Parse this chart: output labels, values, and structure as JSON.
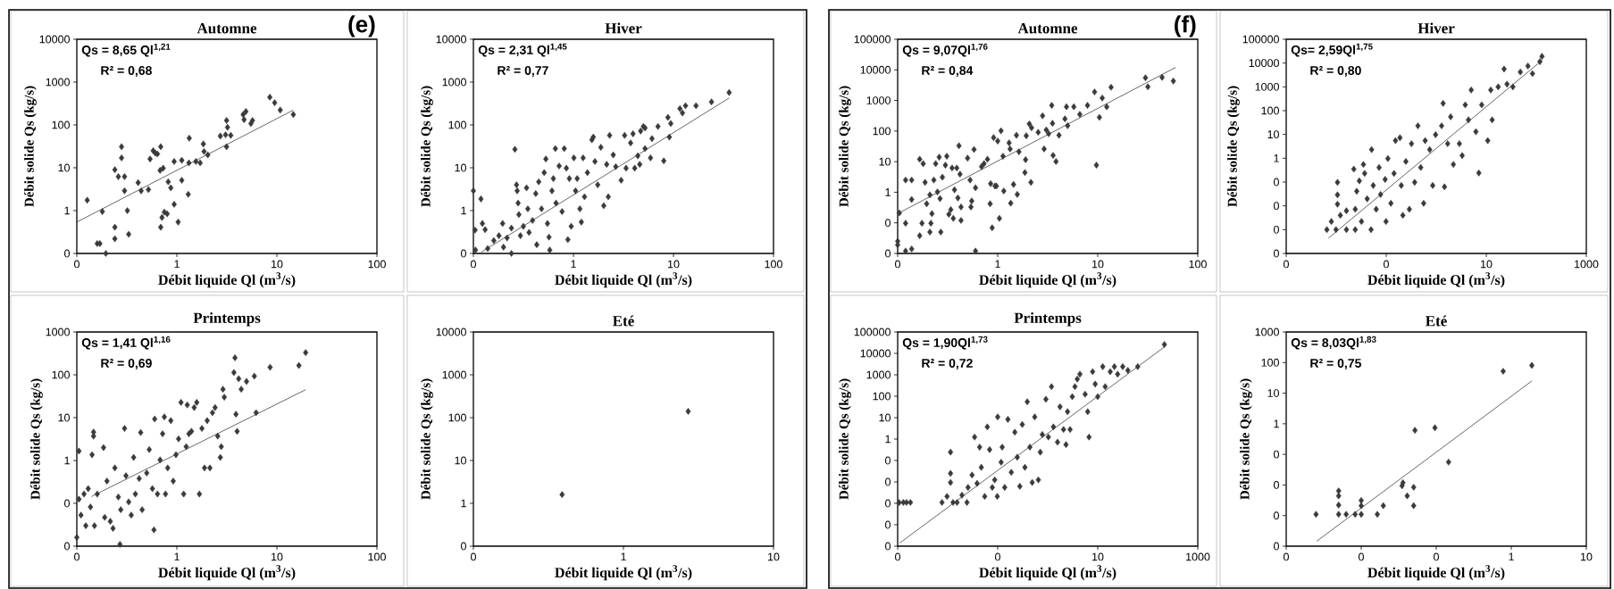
{
  "chart_data": [
    {
      "type": "scatter",
      "title": "Automne",
      "xlabel": "Débit liquide Ql (m$^{3}$/s)",
      "ylabel": "Débit solide Qs (kg/s)",
      "annotations": [
        "Qs = 8,65 Ql$^{1,21}$",
        "R² = 0,68",
        "(e)"
      ],
      "log": "xy",
      "xlim": [
        0.1,
        100
      ],
      "ylim": [
        0.1,
        10000
      ],
      "xticks": [
        {
          "value": 0.1,
          "label": "0"
        },
        1,
        10,
        100
      ],
      "yticks": [
        {
          "value": 0.1,
          "label": "0"
        },
        1,
        10,
        100,
        1000,
        10000
      ],
      "series": [
        {
          "color": "#3a3a3a",
          "marker": "diamond",
          "x": [
            0.127,
            0.16,
            0.17,
            0.18,
            0.195,
            0.24,
            0.24,
            0.24,
            0.26,
            0.28,
            0.28,
            0.3,
            0.3,
            0.32,
            0.33,
            0.41,
            0.44,
            0.52,
            0.54,
            0.58,
            0.61,
            0.64,
            0.68,
            0.69,
            0.69,
            0.71,
            0.73,
            0.75,
            0.8,
            0.82,
            0.87,
            0.94,
            0.94,
            1.03,
            1.12,
            1.12,
            1.3,
            1.32,
            1.33,
            1.55,
            1.71,
            1.84,
            1.87,
            2.04,
            2.72,
            3.07,
            3.14,
            3.21,
            3.14,
            3.46,
            4.6,
            4.7,
            4.9,
            5.5,
            5.7,
            8.5,
            9.5,
            10.8,
            14.6
          ],
          "values": [
            1.75,
            0.17,
            0.17,
            0.95,
            0.1,
            9,
            0.41,
            0.22,
            6.2,
            31,
            17,
            2.9,
            6.2,
            1.0,
            0.28,
            4.5,
            2.9,
            3.1,
            16,
            25,
            22,
            21,
            8.7,
            31,
            0.41,
            0.69,
            9.8,
            0.92,
            0.84,
            4.7,
            3.4,
            14,
            1.4,
            0.54,
            15,
            5.1,
            2.4,
            13,
            49,
            14,
            13,
            36,
            24,
            20,
            55,
            59,
            127,
            88,
            31,
            57,
            175,
            133,
            206,
            108,
            127,
            444,
            330,
            222,
            175
          ]
        },
        {
          "type": "line",
          "color": "#000000",
          "x": [
            0.1,
            14.6
          ],
          "values": [
            0.54,
            222
          ]
        }
      ]
    },
    {
      "type": "scatter",
      "title": "Hiver",
      "xlabel": "Débit liquide Ql (m$^{3}$/s)",
      "ylabel": "Débit solide Qs (kg/s)",
      "annotations": [
        "Qs = 2,31 Ql$^{1,45}$",
        "R² = 0,77"
      ],
      "log": "xy",
      "xlim": [
        0.1,
        100
      ],
      "ylim": [
        0.1,
        10000
      ],
      "xticks": [
        {
          "value": 0.1,
          "label": "0"
        },
        1,
        10,
        100
      ],
      "yticks": [
        {
          "value": 0.1,
          "label": "0"
        },
        1,
        10,
        100,
        1000,
        10000
      ],
      "series": [
        {
          "color": "#3a3a3a",
          "marker": "diamond",
          "x": [
            0.1,
            0.119,
            0.104,
            0.123,
            0.131,
            0.105,
            0.139,
            0.16,
            0.18,
            0.196,
            0.2,
            0.217,
            0.24,
            0.24,
            0.26,
            0.27,
            0.274,
            0.28,
            0.285,
            0.295,
            0.316,
            0.34,
            0.35,
            0.36,
            0.39,
            0.42,
            0.43,
            0.45,
            0.48,
            0.51,
            0.53,
            0.55,
            0.57,
            0.58,
            0.61,
            0.63,
            0.66,
            0.67,
            0.72,
            0.77,
            0.81,
            0.85,
            0.88,
            0.91,
            0.95,
            1.01,
            1.05,
            1.09,
            1.16,
            1.2,
            1.25,
            1.29,
            1.38,
            1.53,
            1.58,
            1.64,
            1.75,
            1.88,
            2.01,
            2.15,
            2.23,
            2.3,
            2.5,
            2.65,
            3.0,
            3.25,
            3.36,
            3.73,
            3.94,
            4.1,
            4.4,
            4.6,
            4.7,
            5.0,
            5.2,
            5.2,
            5.9,
            6.1,
            7.0,
            8.0,
            8.8,
            9.1,
            9.4,
            11.6,
            12.3,
            13.2,
            16.8,
            24,
            36
          ],
          "values": [
            2.9,
            1.87,
            0.35,
            0.5,
            0.36,
            0.12,
            0.13,
            0.2,
            0.26,
            0.5,
            0.14,
            0.23,
            0.1,
            0.39,
            27,
            4.0,
            2.9,
            1.5,
            0.81,
            0.26,
            0.43,
            3.4,
            1.1,
            0.31,
            0.59,
            2.5,
            0.16,
            4.7,
            1.1,
            7.7,
            16,
            0.5,
            0.24,
            0.12,
            2.9,
            5.6,
            28,
            1.5,
            11,
            0.95,
            28,
            9.8,
            0.21,
            5.6,
            0.43,
            17,
            2.9,
            5.6,
            1.1,
            0.54,
            17,
            2.1,
            7.7,
            45,
            52,
            14,
            4.0,
            30,
            1.3,
            12,
            2.1,
            57,
            20,
            10.6,
            5.1,
            57,
            9.8,
            38,
            62,
            9.8,
            19,
            12,
            72,
            92,
            28,
            85,
            17,
            48,
            92,
            14.5,
            150,
            52,
            108,
            240,
            190,
            280,
            280,
            345,
            570
          ]
        },
        {
          "type": "line",
          "color": "#000000",
          "x": [
            0.12,
            36
          ],
          "values": [
            0.107,
            424
          ]
        }
      ]
    },
    {
      "type": "scatter",
      "title": "Automne",
      "xlabel": "Débit liquide Ql (m$^{3}$/s)",
      "ylabel": "Débit solide Qs (kg/s)",
      "annotations": [
        "Qs = 9,07Ql$^{1,76}$",
        "R² = 0,84",
        "(f)"
      ],
      "log": "xy",
      "xlim": [
        0.1,
        100
      ],
      "ylim": [
        0.01,
        100000
      ],
      "xticks": [
        {
          "value": 0.1,
          "label": "0"
        },
        1,
        10,
        100
      ],
      "yticks": [
        {
          "value": 0.01,
          "label": "0"
        },
        {
          "value": 0.1,
          "label": "0"
        },
        1,
        10,
        100,
        1000,
        10000,
        100000
      ],
      "series": [
        {
          "color": "#3a3a3a",
          "marker": "diamond",
          "x": [
            0.1,
            0.1,
            0.104,
            0.12,
            0.12,
            0.12,
            0.138,
            0.138,
            0.138,
            0.166,
            0.166,
            0.175,
            0.18,
            0.188,
            0.195,
            0.21,
            0.21,
            0.215,
            0.22,
            0.23,
            0.24,
            0.25,
            0.26,
            0.265,
            0.27,
            0.28,
            0.3,
            0.31,
            0.325,
            0.34,
            0.35,
            0.36,
            0.37,
            0.39,
            0.4,
            0.41,
            0.42,
            0.43,
            0.43,
            0.5,
            0.53,
            0.54,
            0.55,
            0.58,
            0.6,
            0.6,
            0.69,
            0.73,
            0.79,
            0.84,
            0.85,
            0.88,
            0.91,
            0.94,
            0.97,
            1.0,
            1.04,
            1.08,
            1.13,
            1.15,
            1.3,
            1.33,
            1.35,
            1.44,
            1.54,
            1.57,
            1.63,
            1.87,
            1.9,
            1.93,
            2.07,
            2.15,
            2.18,
            2.54,
            2.81,
            2.91,
            3.06,
            3.23,
            3.47,
            3.53,
            3.58,
            3.83,
            4.1,
            4.7,
            4.87,
            5.0,
            5.77,
            6.62,
            7.9,
            9.3,
            9.7,
            10.4,
            11.1,
            12.3,
            13.6,
            30,
            31.7,
            44,
            57
          ],
          "values": [
            0.025,
            0.019,
            0.21,
            2.5,
            0.097,
            0.012,
            2.5,
            0.58,
            0.014,
            12,
            0.038,
            0.097,
            8.6,
            2.1,
            0.42,
            0.82,
            0.05,
            0.097,
            0.2,
            2.5,
            8.6,
            1.02,
            14,
            0.62,
            0.05,
            3.1,
            7.7,
            15,
            0.19,
            0.27,
            6.2,
            0.14,
            1.2,
            6.2,
            0.65,
            33,
            3.9,
            0.12,
            0.33,
            13,
            2.5,
            0.33,
            0.52,
            25,
            1.4,
            0.012,
            6.9,
            8.6,
            12,
            0.42,
            1.9,
            0.069,
            61,
            1.6,
            1.6,
            47,
            0.14,
            102,
            15,
            1.1,
            41,
            26,
            0.44,
            1.8,
            73,
            0.85,
            21,
            4.4,
            11.6,
            70,
            171,
            2.1,
            128,
            91,
            315,
            26,
            109,
            82,
            690,
            179,
            16,
            10.1,
            73,
            250,
            620,
            150,
            620,
            350,
            690,
            1900,
            7.7,
            280,
            1200,
            620,
            2700,
            5500,
            2800,
            5700,
            4300
          ]
        },
        {
          "type": "line",
          "color": "#000000",
          "x": [
            0.1,
            60
          ],
          "values": [
            0.2,
            12000
          ]
        }
      ]
    },
    {
      "type": "scatter",
      "title": "Hiver",
      "xlabel": "Débit liquide Ql (m$^{3}$/s)",
      "ylabel": "Débit solide Qs (kg/s)",
      "annotations": [
        "Qs= 2,59Ql$^{1,75}$",
        "R² = 0,80"
      ],
      "log": "xy",
      "xlim": [
        0.001,
        1000
      ],
      "ylim": [
        0.0001,
        100000
      ],
      "xticks": [
        {
          "value": 0.001,
          "label": "0"
        },
        {
          "value": 0.1,
          "label": "0"
        },
        10,
        1000
      ],
      "yticks": [
        {
          "value": 0.0001,
          "label": "0"
        },
        {
          "value": 0.001,
          "label": "0"
        },
        {
          "value": 0.01,
          "label": "0"
        },
        {
          "value": 0.1,
          "label": "0"
        },
        1,
        10,
        100,
        1000,
        10000,
        100000
      ],
      "series": [
        {
          "color": "#3a3a3a",
          "marker": "diamond",
          "x": [
            0.0065,
            0.008,
            0.0099,
            0.0106,
            0.0106,
            0.0106,
            0.0121,
            0.016,
            0.016,
            0.0225,
            0.024,
            0.024,
            0.0257,
            0.029,
            0.032,
            0.035,
            0.037,
            0.0416,
            0.0497,
            0.051,
            0.055,
            0.063,
            0.072,
            0.077,
            0.095,
            0.099,
            0.108,
            0.124,
            0.143,
            0.153,
            0.188,
            0.2,
            0.215,
            0.247,
            0.29,
            0.32,
            0.37,
            0.43,
            0.49,
            0.56,
            0.6,
            0.74,
            0.85,
            0.97,
            1.28,
            1.37,
            1.46,
            1.69,
            1.94,
            2.2,
            2.9,
            3.3,
            3.8,
            4.4,
            5.0,
            6.2,
            7.1,
            8.1,
            10.7,
            12.3,
            13.1,
            17.3,
            22.7,
            26,
            34,
            48,
            68,
            84,
            118,
            130
          ],
          "values": [
            0.001,
            0.0022,
            0.001,
            0.097,
            0.029,
            0.0117,
            0.004,
            0.001,
            0.0062,
            0.35,
            0.001,
            0.0072,
            0.041,
            0.112,
            0.0022,
            0.55,
            0.23,
            0.0197,
            0.001,
            2.3,
            0.072,
            0.0072,
            0.41,
            0.03,
            0.129,
            0.0022,
            0.97,
            0.0128,
            0.23,
            5.5,
            7.3,
            0.072,
            0.004,
            0.73,
            0.0072,
            4.1,
            0.097,
            23,
            0.41,
            0.0128,
            5.5,
            2.3,
            0.072,
            9.8,
            23,
            203,
            0.063,
            4.1,
            55,
            0.55,
            4.1,
            1.3,
            175,
            41,
            740,
            13,
            0.24,
            175,
            5.5,
            740,
            41,
            1000,
            5600,
            1300,
            1000,
            4200,
            7500,
            3600,
            11500,
            19000
          ]
        },
        {
          "type": "line",
          "color": "#000000",
          "x": [
            0.007,
            130
          ],
          "values": [
            0.00044,
            13000
          ]
        }
      ]
    },
    {
      "type": "scatter",
      "title": "Printemps",
      "xlabel": "Débit liquide Ql (m$^{3}$/s)",
      "ylabel": "Débit solide Qs (kg/s)",
      "annotations": [
        "Qs = 1,41 Ql$^{1,16}$",
        "R² = 0,69"
      ],
      "log": "xy",
      "xlim": [
        0.1,
        100
      ],
      "ylim": [
        0.01,
        1000
      ],
      "xticks": [
        {
          "value": 0.1,
          "label": "0"
        },
        1,
        10,
        100
      ],
      "yticks": [
        {
          "value": 0.01,
          "label": "0"
        },
        {
          "value": 0.1,
          "label": "0"
        },
        1,
        10,
        100,
        1000
      ],
      "series": [
        {
          "color": "#3a3a3a",
          "marker": "diamond",
          "x": [
            0.1,
            0.105,
            0.105,
            0.11,
            0.118,
            0.123,
            0.13,
            0.137,
            0.142,
            0.147,
            0.147,
            0.15,
            0.16,
            0.185,
            0.19,
            0.2,
            0.216,
            0.23,
            0.24,
            0.26,
            0.27,
            0.275,
            0.3,
            0.31,
            0.33,
            0.35,
            0.37,
            0.385,
            0.42,
            0.435,
            0.45,
            0.5,
            0.53,
            0.57,
            0.59,
            0.6,
            0.64,
            0.68,
            0.72,
            0.75,
            0.77,
            0.81,
            0.87,
            0.92,
            0.98,
            1.04,
            1.1,
            1.17,
            1.24,
            1.27,
            1.32,
            1.4,
            1.49,
            1.58,
            1.68,
            1.78,
            1.89,
            2.01,
            2.14,
            2.27,
            2.41,
            2.56,
            2.72,
            2.78,
            2.89,
            2.98,
            3.72,
            3.81,
            3.9,
            4.0,
            4.15,
            4.4,
            4.97,
            5.95,
            6.2,
            8.55,
            16.6,
            19.4
          ],
          "values": [
            0.016,
            1.66,
            0.125,
            0.053,
            0.165,
            0.03,
            0.22,
            0.082,
            1.36,
            4.6,
            3.7,
            0.03,
            0.165,
            2.0,
            0.047,
            0.33,
            0.038,
            0.026,
            0.67,
            0.14,
            0.011,
            0.071,
            5.6,
            0.44,
            0.108,
            0.053,
            1.18,
            0.165,
            0.38,
            4.5,
            0.071,
            0.51,
            1.8,
            0.22,
            0.024,
            9.3,
            0.165,
            1.03,
            4.2,
            10.4,
            0.165,
            0.67,
            8.5,
            0.33,
            1.36,
            3.2,
            22.7,
            0.165,
            2.1,
            19.8,
            4.2,
            4.8,
            17.2,
            22.7,
            0.165,
            5.6,
            0.67,
            8.5,
            0.67,
            13,
            17.2,
            3.7,
            1.18,
            2.1,
            46,
            30,
            113,
            250,
            12,
            4.8,
            81,
            46,
            70,
            93,
            13,
            150,
            165,
            330
          ]
        },
        {
          "type": "line",
          "color": "#000000",
          "x": [
            0.14,
            19.4
          ],
          "values": [
            0.144,
            45
          ]
        }
      ]
    },
    {
      "type": "scatter",
      "title": "Eté",
      "xlabel": "Débit liquide Ql (m$^{3}$/s)",
      "ylabel": "Débit solide Qs (kg/s)",
      "log": "xy",
      "xlim": [
        0.1,
        10
      ],
      "ylim": [
        0.1,
        10000
      ],
      "xticks": [
        {
          "value": 0.1,
          "label": "0"
        },
        1,
        10
      ],
      "yticks": [
        {
          "value": 0.1,
          "label": "0"
        },
        1,
        10,
        100,
        1000,
        10000
      ],
      "series": [
        {
          "color": "#3a3a3a",
          "marker": "diamond",
          "x": [
            0.39,
            2.7
          ],
          "values": [
            1.6,
            140
          ]
        }
      ]
    },
    {
      "type": "scatter",
      "title": "Printemps",
      "xlabel": "Débit liquide Ql (m$^{3}$/s)",
      "ylabel": "Débit solide Qs (kg/s)",
      "annotations": [
        "Qs = 1,90Ql$^{1,73}$",
        "R² = 0,72"
      ],
      "log": "xy",
      "xlim": [
        0.001,
        1000
      ],
      "ylim": [
        1e-05,
        100000
      ],
      "xticks": [
        {
          "value": 0.001,
          "label": "0"
        },
        {
          "value": 0.1,
          "label": "0"
        },
        10,
        1000
      ],
      "yticks": [
        {
          "value": 1e-05,
          "label": "0"
        },
        {
          "value": 0.0001,
          "label": "0"
        },
        {
          "value": 0.001,
          "label": "0"
        },
        {
          "value": 0.01,
          "label": "0"
        },
        {
          "value": 0.1,
          "label": "0"
        },
        1,
        10,
        100,
        1000,
        10000,
        100000
      ],
      "series": [
        {
          "color": "#3a3a3a",
          "marker": "diamond",
          "x": [
            0.00107,
            0.0013,
            0.0015,
            0.0018,
            0.0077,
            0.0097,
            0.0114,
            0.0114,
            0.0114,
            0.0128,
            0.0154,
            0.0193,
            0.0243,
            0.0255,
            0.0307,
            0.0345,
            0.0387,
            0.0435,
            0.047,
            0.055,
            0.062,
            0.069,
            0.078,
            0.087,
            0.098,
            0.1,
            0.117,
            0.123,
            0.138,
            0.16,
            0.187,
            0.22,
            0.246,
            0.277,
            0.31,
            0.35,
            0.39,
            0.44,
            0.49,
            0.55,
            0.65,
            0.71,
            0.78,
            0.92,
            1.03,
            1.19,
            1.3,
            1.57,
            1.76,
            2.07,
            2.32,
            2.49,
            2.8,
            3.1,
            3.5,
            3.9,
            4.4,
            5.6,
            6.3,
            6.7,
            7.9,
            8.9,
            10,
            12.6,
            14.1,
            17.8,
            21.5,
            25,
            31.6,
            40,
            63,
            215
          ],
          "values": [
            0.00108,
            0.0011,
            0.0011,
            0.0011,
            0.0011,
            0.0021,
            0.245,
            0.025,
            0.0094,
            0.0011,
            0.0011,
            0.0024,
            0.0011,
            0.0055,
            0.021,
            1.24,
            0.0085,
            0.42,
            0.048,
            0.0021,
            3.7,
            0.32,
            0.0055,
            0.0124,
            0.0021,
            10.8,
            0.083,
            0.42,
            0.0055,
            8.3,
            0.028,
            2.1,
            0.142,
            0.0062,
            4.8,
            0.048,
            55,
            0.42,
            0.0094,
            10.8,
            0.0124,
            0.245,
            1.63,
            72,
            1.24,
            280,
            3.7,
            0.72,
            32,
            2.8,
            0.55,
            19,
            2.8,
            95,
            280,
            630,
            1070,
            124,
            19,
            1.24,
            1400,
            370,
            95,
            2400,
            280,
            1400,
            2400,
            1070,
            2400,
            1600,
            2400,
            26000
          ]
        },
        {
          "type": "line",
          "color": "#000000",
          "x": [
            0.0011,
            215
          ],
          "values": [
            1.4e-05,
            20000
          ]
        }
      ]
    },
    {
      "type": "scatter",
      "title": "Eté",
      "xlabel": "Débit liquide Ql (m$^{3}$/s)",
      "ylabel": "Débit solide Qs (kg/s)",
      "annotations": [
        "Qs = 8,03Ql$^{1,83}$",
        "R² = 0,75"
      ],
      "log": "xy",
      "xlim": [
        0.001,
        10
      ],
      "ylim": [
        0.0001,
        1000
      ],
      "xticks": [
        {
          "value": 0.001,
          "label": "0"
        },
        {
          "value": 0.01,
          "label": "0"
        },
        {
          "value": 0.1,
          "label": "0"
        },
        1,
        10
      ],
      "yticks": [
        {
          "value": 0.0001,
          "label": "0"
        },
        {
          "value": 0.001,
          "label": "0"
        },
        {
          "value": 0.01,
          "label": "0"
        },
        {
          "value": 0.1,
          "label": "0"
        },
        1,
        10,
        100,
        1000
      ],
      "series": [
        {
          "color": "#3a3a3a",
          "marker": "diamond",
          "x": [
            0.0025,
            0.005,
            0.005,
            0.005,
            0.005,
            0.0063,
            0.0083,
            0.01,
            0.01,
            0.01,
            0.0164,
            0.0197,
            0.035,
            0.036,
            0.041,
            0.05,
            0.05,
            0.052,
            0.096,
            0.146,
            0.78,
            1.88
          ],
          "values": [
            0.0011,
            0.0064,
            0.0044,
            0.0022,
            0.0011,
            0.0011,
            0.0011,
            0.0031,
            0.0021,
            0.0011,
            0.0011,
            0.0021,
            0.0094,
            0.0118,
            0.0044,
            0.0084,
            0.0021,
            0.61,
            0.74,
            0.056,
            52,
            81
          ]
        },
        {
          "type": "line",
          "color": "#000000",
          "x": [
            0.00255,
            1.88
          ],
          "values": [
            0.000145,
            25
          ]
        }
      ]
    }
  ]
}
